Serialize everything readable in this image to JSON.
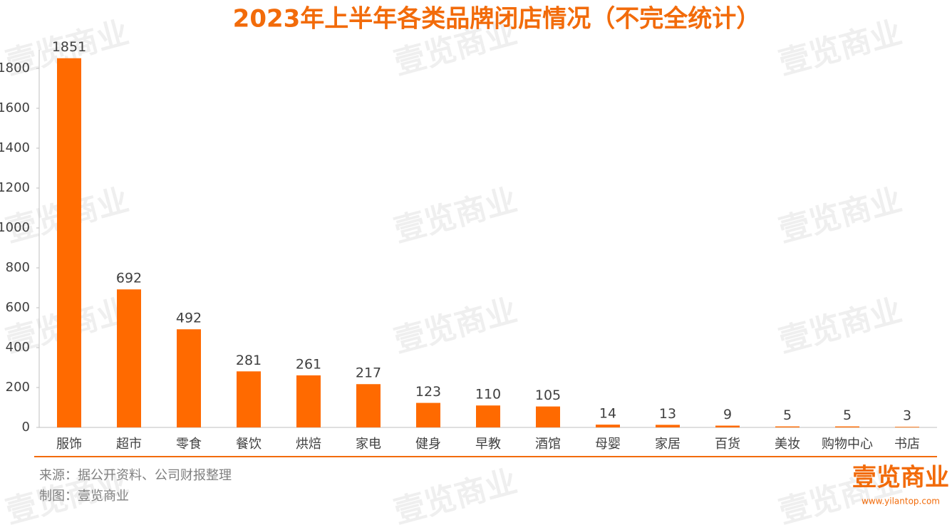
{
  "chart_data": {
    "type": "bar",
    "title": "2023年上半年各类品牌闭店情况（不完全统计）",
    "categories": [
      "服饰",
      "超市",
      "零食",
      "餐饮",
      "烘焙",
      "家电",
      "健身",
      "早教",
      "酒馆",
      "母婴",
      "家居",
      "百货",
      "美妆",
      "购物中心",
      "书店"
    ],
    "values": [
      1851,
      692,
      492,
      281,
      261,
      217,
      123,
      110,
      105,
      14,
      13,
      9,
      5,
      5,
      3
    ],
    "color": "#ff6a00",
    "ylim": [
      0,
      2000
    ],
    "yticks": [
      0,
      200,
      400,
      600,
      800,
      1000,
      1200,
      1400,
      1600,
      1800
    ],
    "grid": false,
    "source": "来源：据公开资料、公司财报整理",
    "credit": "制图：壹览商业",
    "watermark": "壹览商业",
    "logo": "壹览商业",
    "site": "www.yilantop.com"
  }
}
